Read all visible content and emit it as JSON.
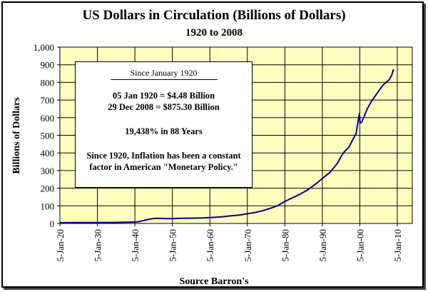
{
  "chart_data": {
    "type": "line",
    "title": "US Dollars in Circulation (Billions of Dollars)",
    "subtitle": "1920 to 2008",
    "xlabel": "Source Barron's",
    "ylabel": "Billions of Dollars",
    "ylim": [
      0,
      1000
    ],
    "xlim": [
      1920,
      2014
    ],
    "grid": true,
    "yticks": [
      0,
      100,
      200,
      300,
      400,
      500,
      600,
      700,
      800,
      900,
      1000
    ],
    "ytick_labels": [
      "0",
      "100",
      "200",
      "300",
      "400",
      "500",
      "600",
      "700",
      "800",
      "900",
      "1,000"
    ],
    "xticks": [
      1920,
      1930,
      1940,
      1950,
      1960,
      1970,
      1980,
      1990,
      2000,
      2010
    ],
    "xtick_labels": [
      "5-Jan-20",
      "5-Jan-30",
      "5-Jan-40",
      "5-Jan-50",
      "5-Jan-60",
      "5-Jan-70",
      "5-Jan-80",
      "5-Jan-90",
      "5-Jan-00",
      "5-Jan-10"
    ],
    "series": [
      {
        "name": "US Dollars in Circulation",
        "color": "#000080",
        "x": [
          1920,
          1925,
          1930,
          1935,
          1940,
          1941,
          1942,
          1943,
          1944,
          1945,
          1946,
          1948,
          1950,
          1952,
          1955,
          1958,
          1960,
          1963,
          1965,
          1968,
          1970,
          1972,
          1974,
          1976,
          1978,
          1980,
          1982,
          1984,
          1986,
          1988,
          1990,
          1992,
          1994,
          1995,
          1996,
          1997,
          1998,
          1999,
          1999.9,
          2000.05,
          2000.5,
          2001,
          2002,
          2003,
          2004,
          2005,
          2006,
          2007,
          2007.8,
          2008.5,
          2008.99
        ],
        "y": [
          4.48,
          5,
          5,
          6,
          8,
          10,
          15,
          20,
          25,
          28,
          29,
          28,
          27,
          29,
          30,
          31,
          33,
          37,
          42,
          48,
          55,
          62,
          72,
          85,
          100,
          125,
          145,
          165,
          190,
          220,
          255,
          290,
          340,
          380,
          410,
          430,
          470,
          510,
          625,
          570,
          575,
          600,
          650,
          690,
          720,
          750,
          780,
          800,
          815,
          840,
          875.3
        ]
      }
    ],
    "annotation": {
      "heading": "Since January 1920",
      "line1": "05 Jan 1920 = $4.48 Billion",
      "line2": "29 Dec 2008 = $875.30 Billion",
      "line3": "19,438% in 88 Years",
      "line4": "Since 1920, Inflation has been a constant",
      "line5": "factor in American \"Monetary Policy.\""
    },
    "colors": {
      "plot_bg": "#FFFFC0",
      "line": "#000080"
    }
  }
}
